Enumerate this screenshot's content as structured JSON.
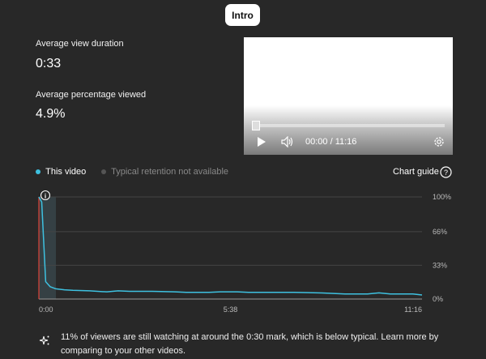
{
  "top_button": {
    "label": "Intro"
  },
  "metrics": [
    {
      "label": "Average view duration",
      "value": "0:33"
    },
    {
      "label": "Average percentage viewed",
      "value": "4.9%"
    }
  ],
  "player": {
    "time": "00:00 / 11:16",
    "icons": [
      "play-icon",
      "volume-icon",
      "settings-icon"
    ]
  },
  "legend": {
    "this_video": "This video",
    "typical": "Typical retention not available",
    "chart_guide": "Chart guide"
  },
  "colors": {
    "series": "#3ec1e0",
    "highlight": "#3a4a50",
    "marker": "#e0443a"
  },
  "chart_data": {
    "type": "line",
    "x_unit": "seconds",
    "xlim": [
      0,
      676
    ],
    "ylim": [
      0,
      100
    ],
    "x_ticks": [
      "0:00",
      "5:38",
      "11:16"
    ],
    "y_ticks": [
      "100%",
      "66%",
      "33%",
      "0%"
    ],
    "grid": true,
    "highlight_range": [
      "0:00",
      "0:30"
    ],
    "series": [
      {
        "name": "This video",
        "x": [
          0,
          5,
          12,
          20,
          30,
          45,
          60,
          90,
          120,
          140,
          160,
          200,
          240,
          260,
          300,
          320,
          350,
          370,
          400,
          450,
          500,
          540,
          580,
          600,
          620,
          660,
          676
        ],
        "y": [
          100,
          95,
          17,
          12,
          10,
          9,
          8.5,
          8,
          7,
          8,
          7.5,
          7.5,
          7,
          6.5,
          6.5,
          7,
          7,
          6.5,
          6.5,
          6.5,
          6,
          5,
          5,
          6,
          5,
          5,
          4
        ]
      }
    ]
  },
  "insight": "11% of viewers are still watching at around the 0:30 mark, which is below typical. Learn more by comparing to your other videos."
}
